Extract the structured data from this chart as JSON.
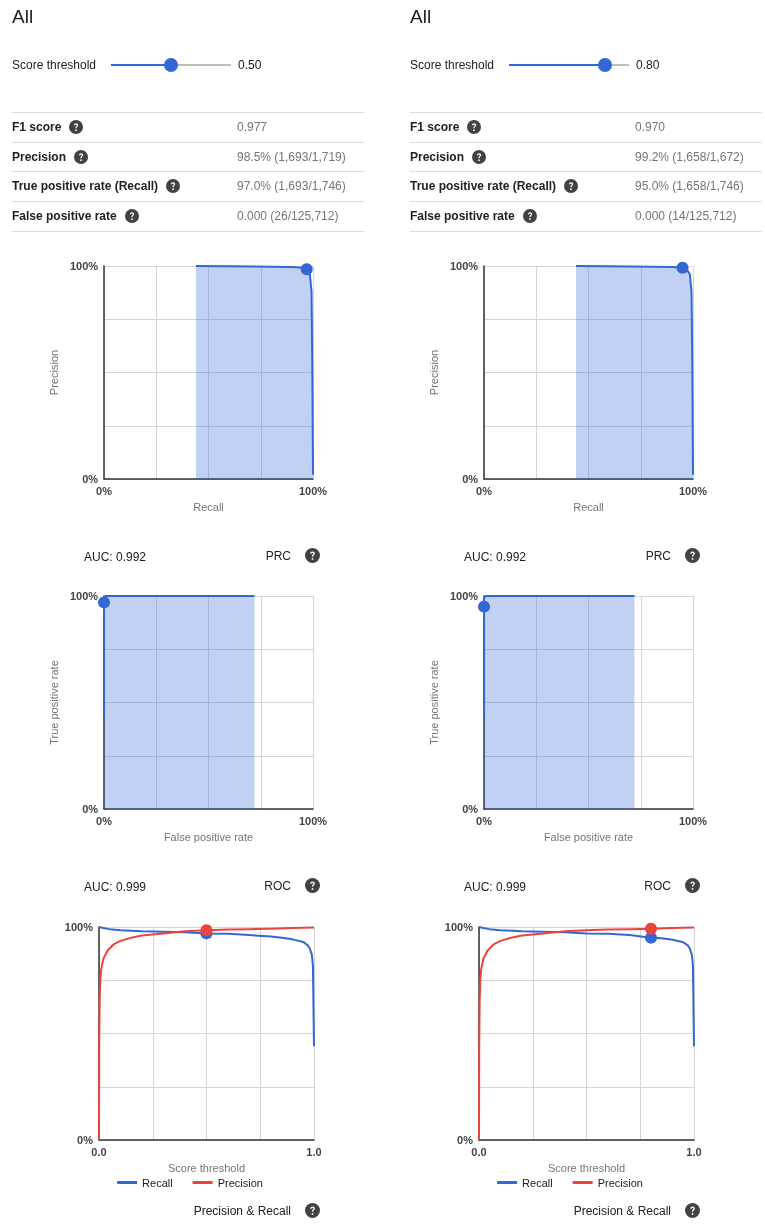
{
  "chart_data": [
    {
      "type": "other",
      "title": "All",
      "annotations": [
        "Score threshold",
        "0.50",
        "F1 score",
        "0.977",
        "Precision",
        "98.5% (1,693/1,719)",
        "True positive rate (Recall)",
        "97.0% (1,693/1,746)",
        "False positive rate",
        "0.000 (26/125,712)"
      ]
    },
    {
      "type": "other",
      "title": "All",
      "annotations": [
        "Score threshold",
        "0.80",
        "F1 score",
        "0.970",
        "Precision",
        "99.2% (1,658/1,672)",
        "True positive rate (Recall)",
        "95.0% (1,658/1,746)",
        "False positive rate",
        "0.000 (14/125,712)"
      ]
    },
    {
      "type": "area",
      "xlabel": "Recall",
      "ylabel": "Precision",
      "xlim": [
        0,
        100
      ],
      "ylim": [
        0,
        100
      ],
      "grid": true,
      "annotations": [
        "AUC: 0.992",
        "PRC"
      ],
      "xticks": [
        {
          "value": 0,
          "label": "0%"
        },
        {
          "value": 25,
          "label": null
        },
        {
          "value": 50,
          "label": null
        },
        {
          "value": 75,
          "label": null
        },
        {
          "value": 100,
          "label": "100%"
        }
      ],
      "yticks": [
        {
          "value": 0,
          "label": "0%"
        },
        {
          "value": 25,
          "label": null
        },
        {
          "value": 50,
          "label": null
        },
        {
          "value": 75,
          "label": null
        },
        {
          "value": 100,
          "label": "100%"
        }
      ],
      "series": [
        {
          "type": "area",
          "color": "#3367d6",
          "x": [
            44,
            60,
            80,
            90,
            95,
            97,
            98.5,
            99.3,
            99.7,
            100
          ],
          "values": [
            100,
            99.9,
            99.7,
            99.5,
            99.2,
            98.5,
            96,
            88,
            50,
            2
          ]
        },
        {
          "type": "scatter",
          "color": "#3367d6",
          "x": [
            97
          ],
          "values": [
            98.5
          ]
        }
      ]
    },
    {
      "type": "area",
      "xlabel": "Recall",
      "ylabel": "Precision",
      "xlim": [
        0,
        100
      ],
      "ylim": [
        0,
        100
      ],
      "grid": true,
      "annotations": [
        "AUC: 0.992",
        "PRC"
      ],
      "xticks": [
        {
          "value": 0,
          "label": "0%"
        },
        {
          "value": 25,
          "label": null
        },
        {
          "value": 50,
          "label": null
        },
        {
          "value": 75,
          "label": null
        },
        {
          "value": 100,
          "label": "100%"
        }
      ],
      "yticks": [
        {
          "value": 0,
          "label": "0%"
        },
        {
          "value": 25,
          "label": null
        },
        {
          "value": 50,
          "label": null
        },
        {
          "value": 75,
          "label": null
        },
        {
          "value": 100,
          "label": "100%"
        }
      ],
      "series": [
        {
          "type": "area",
          "color": "#3367d6",
          "x": [
            44,
            60,
            80,
            90,
            95,
            97,
            98.5,
            99.3,
            99.7,
            100
          ],
          "values": [
            100,
            99.9,
            99.7,
            99.5,
            99.2,
            98.5,
            96,
            88,
            50,
            2
          ]
        },
        {
          "type": "scatter",
          "color": "#3367d6",
          "x": [
            95
          ],
          "values": [
            99.2
          ]
        }
      ]
    },
    {
      "type": "area",
      "xlabel": "False positive rate",
      "ylabel": "True positive rate",
      "xlim": [
        0,
        100
      ],
      "ylim": [
        0,
        100
      ],
      "grid": true,
      "annotations": [
        "AUC: 0.999",
        "ROC"
      ],
      "xticks": [
        {
          "value": 0,
          "label": "0%"
        },
        {
          "value": 25,
          "label": null
        },
        {
          "value": 50,
          "label": null
        },
        {
          "value": 75,
          "label": null
        },
        {
          "value": 100,
          "label": "100%"
        }
      ],
      "yticks": [
        {
          "value": 0,
          "label": "0%"
        },
        {
          "value": 25,
          "label": null
        },
        {
          "value": 50,
          "label": null
        },
        {
          "value": 75,
          "label": null
        },
        {
          "value": 100,
          "label": "100%"
        }
      ],
      "series": [
        {
          "type": "area",
          "color": "#3367d6",
          "x": [
            0,
            0,
            0,
            1,
            72
          ],
          "values": [
            44,
            97,
            99.5,
            100,
            100
          ]
        },
        {
          "type": "scatter",
          "color": "#3367d6",
          "x": [
            0
          ],
          "values": [
            97
          ]
        }
      ]
    },
    {
      "type": "area",
      "xlabel": "False positive rate",
      "ylabel": "True positive rate",
      "xlim": [
        0,
        100
      ],
      "ylim": [
        0,
        100
      ],
      "grid": true,
      "annotations": [
        "AUC: 0.999",
        "ROC"
      ],
      "xticks": [
        {
          "value": 0,
          "label": "0%"
        },
        {
          "value": 25,
          "label": null
        },
        {
          "value": 50,
          "label": null
        },
        {
          "value": 75,
          "label": null
        },
        {
          "value": 100,
          "label": "100%"
        }
      ],
      "yticks": [
        {
          "value": 0,
          "label": "0%"
        },
        {
          "value": 25,
          "label": null
        },
        {
          "value": 50,
          "label": null
        },
        {
          "value": 75,
          "label": null
        },
        {
          "value": 100,
          "label": "100%"
        }
      ],
      "series": [
        {
          "type": "area",
          "color": "#3367d6",
          "x": [
            0,
            0,
            0,
            1,
            72
          ],
          "values": [
            44,
            95,
            99.5,
            100,
            100
          ]
        },
        {
          "type": "scatter",
          "color": "#3367d6",
          "x": [
            0
          ],
          "values": [
            95
          ]
        }
      ]
    },
    {
      "type": "line",
      "xlabel": "Score threshold",
      "xlim": [
        0,
        1
      ],
      "ylim": [
        0,
        100
      ],
      "grid": true,
      "legend": "bottom",
      "annotations": [
        "Precision & Recall"
      ],
      "xticks": [
        {
          "value": 0,
          "label": "0.0"
        },
        {
          "value": 0.25,
          "label": null
        },
        {
          "value": 0.5,
          "label": null
        },
        {
          "value": 0.75,
          "label": null
        },
        {
          "value": 1,
          "label": "1.0"
        }
      ],
      "yticks": [
        {
          "value": 0,
          "label": "0%"
        },
        {
          "value": 25,
          "label": null
        },
        {
          "value": 50,
          "label": null
        },
        {
          "value": 75,
          "label": null
        },
        {
          "value": 100,
          "label": "100%"
        }
      ],
      "series": [
        {
          "type": "line",
          "name": "Recall",
          "color": "#3367d6",
          "x": [
            0,
            0.02,
            0.05,
            0.1,
            0.2,
            0.3,
            0.4,
            0.5,
            0.6,
            0.7,
            0.8,
            0.85,
            0.9,
            0.95,
            0.97,
            0.98,
            0.99,
            0.995,
            1
          ],
          "values": [
            100,
            99.5,
            99,
            98.5,
            98,
            97.8,
            97.5,
            97,
            96.8,
            96.2,
            95.5,
            95,
            94.2,
            93,
            91.5,
            90,
            87,
            82,
            44
          ]
        },
        {
          "type": "line",
          "name": "Precision",
          "color": "#e8453c",
          "x": [
            0,
            0.001,
            0.003,
            0.006,
            0.01,
            0.02,
            0.04,
            0.07,
            0.1,
            0.15,
            0.2,
            0.3,
            0.4,
            0.5,
            0.6,
            0.7,
            0.8,
            0.9,
            1
          ],
          "values": [
            0,
            45,
            65,
            75,
            80,
            85,
            89,
            92,
            93.5,
            95,
            96,
            97,
            98,
            98.5,
            98.8,
            99,
            99.2,
            99.5,
            99.8
          ]
        },
        {
          "type": "scatter",
          "color": "#3367d6",
          "x": [
            0.5
          ],
          "values": [
            97
          ]
        },
        {
          "type": "scatter",
          "color": "#e8453c",
          "x": [
            0.5
          ],
          "values": [
            98.5
          ]
        }
      ]
    },
    {
      "type": "line",
      "xlabel": "Score threshold",
      "xlim": [
        0,
        1
      ],
      "ylim": [
        0,
        100
      ],
      "grid": true,
      "legend": "bottom",
      "annotations": [
        "Precision & Recall"
      ],
      "xticks": [
        {
          "value": 0,
          "label": "0.0"
        },
        {
          "value": 0.25,
          "label": null
        },
        {
          "value": 0.5,
          "label": null
        },
        {
          "value": 0.75,
          "label": null
        },
        {
          "value": 1,
          "label": "1.0"
        }
      ],
      "yticks": [
        {
          "value": 0,
          "label": "0%"
        },
        {
          "value": 25,
          "label": null
        },
        {
          "value": 50,
          "label": null
        },
        {
          "value": 75,
          "label": null
        },
        {
          "value": 100,
          "label": "100%"
        }
      ],
      "series": [
        {
          "type": "line",
          "name": "Recall",
          "color": "#3367d6",
          "x": [
            0,
            0.02,
            0.05,
            0.1,
            0.2,
            0.3,
            0.4,
            0.5,
            0.6,
            0.7,
            0.8,
            0.85,
            0.9,
            0.95,
            0.97,
            0.98,
            0.99,
            0.995,
            1
          ],
          "values": [
            100,
            99.5,
            99,
            98.5,
            98,
            97.8,
            97.5,
            97,
            96.8,
            96.2,
            95,
            94.7,
            94,
            92.8,
            91.5,
            90,
            87,
            82,
            44
          ]
        },
        {
          "type": "line",
          "name": "Precision",
          "color": "#e8453c",
          "x": [
            0,
            0.001,
            0.003,
            0.006,
            0.01,
            0.02,
            0.04,
            0.07,
            0.1,
            0.15,
            0.2,
            0.3,
            0.4,
            0.5,
            0.6,
            0.7,
            0.8,
            0.9,
            1
          ],
          "values": [
            0,
            45,
            65,
            75,
            80,
            85,
            89,
            92,
            93.5,
            95,
            96,
            97,
            98,
            98.5,
            98.8,
            99,
            99.2,
            99.5,
            99.8
          ]
        },
        {
          "type": "scatter",
          "color": "#3367d6",
          "x": [
            0.8
          ],
          "values": [
            95
          ]
        },
        {
          "type": "scatter",
          "color": "#e8453c",
          "x": [
            0.8
          ],
          "values": [
            99.2
          ]
        }
      ]
    }
  ]
}
